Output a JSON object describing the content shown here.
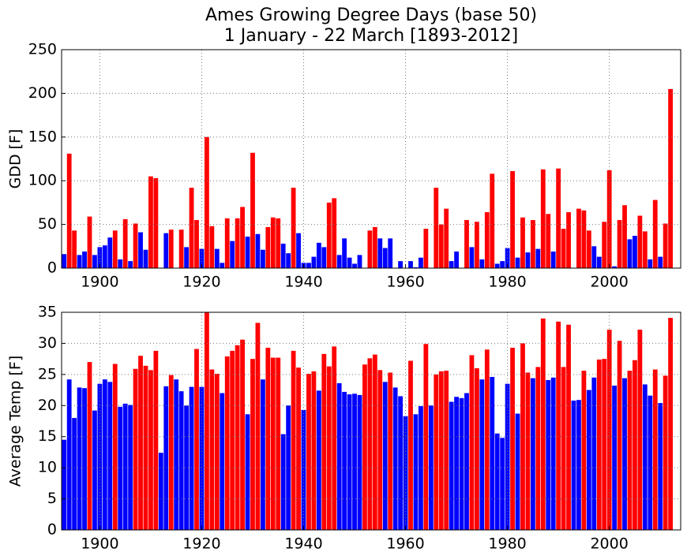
{
  "chart_data": [
    {
      "type": "bar",
      "title": "Ames Growing Degree Days (base 50)",
      "subtitle": "1 January - 22 March [1893-2012]",
      "y_label": "GDD [F]",
      "x": [
        1893,
        1894,
        1895,
        1896,
        1897,
        1898,
        1899,
        1900,
        1901,
        1902,
        1903,
        1904,
        1905,
        1906,
        1907,
        1908,
        1909,
        1910,
        1911,
        1912,
        1913,
        1914,
        1915,
        1916,
        1917,
        1918,
        1919,
        1920,
        1921,
        1922,
        1923,
        1924,
        1925,
        1926,
        1927,
        1928,
        1929,
        1930,
        1931,
        1932,
        1933,
        1934,
        1935,
        1936,
        1937,
        1938,
        1939,
        1940,
        1941,
        1942,
        1943,
        1944,
        1945,
        1946,
        1947,
        1948,
        1949,
        1950,
        1951,
        1952,
        1953,
        1954,
        1955,
        1956,
        1957,
        1958,
        1959,
        1960,
        1961,
        1962,
        1963,
        1964,
        1965,
        1966,
        1967,
        1968,
        1969,
        1970,
        1971,
        1972,
        1973,
        1974,
        1975,
        1976,
        1977,
        1978,
        1979,
        1980,
        1981,
        1982,
        1983,
        1984,
        1985,
        1986,
        1987,
        1988,
        1989,
        1990,
        1991,
        1992,
        1993,
        1994,
        1995,
        1996,
        1997,
        1998,
        1999,
        2000,
        2001,
        2002,
        2003,
        2004,
        2005,
        2006,
        2007,
        2008,
        2009,
        2010,
        2011,
        2012
      ],
      "values": [
        16,
        131,
        43,
        15,
        19,
        59,
        15,
        24,
        26,
        35,
        43,
        10,
        56,
        8,
        51,
        41,
        21,
        105,
        103,
        0,
        40,
        44,
        0,
        44,
        24,
        92,
        55,
        22,
        150,
        48,
        22,
        6,
        57,
        31,
        57,
        70,
        36,
        132,
        39,
        21,
        47,
        58,
        57,
        28,
        17,
        92,
        40,
        6,
        6,
        13,
        29,
        24,
        75,
        80,
        15,
        34,
        12,
        5,
        15,
        0,
        43,
        47,
        34,
        23,
        34,
        0,
        8,
        0,
        8,
        1,
        12,
        45,
        0,
        92,
        50,
        68,
        8,
        19,
        0,
        55,
        24,
        53,
        10,
        64,
        108,
        5,
        8,
        23,
        111,
        12,
        58,
        18,
        55,
        22,
        113,
        62,
        19,
        114,
        45,
        64,
        0,
        68,
        66,
        43,
        25,
        13,
        53,
        112,
        2,
        55,
        72,
        33,
        37,
        60,
        42,
        10,
        78,
        13,
        51,
        205
      ],
      "colors": [
        "blue",
        "red",
        "red",
        "blue",
        "blue",
        "red",
        "blue",
        "blue",
        "blue",
        "blue",
        "red",
        "blue",
        "red",
        "blue",
        "red",
        "blue",
        "blue",
        "red",
        "red",
        "blue",
        "blue",
        "red",
        "blue",
        "red",
        "blue",
        "red",
        "red",
        "blue",
        "red",
        "red",
        "blue",
        "blue",
        "red",
        "blue",
        "red",
        "red",
        "blue",
        "red",
        "blue",
        "blue",
        "red",
        "red",
        "red",
        "blue",
        "blue",
        "red",
        "blue",
        "blue",
        "blue",
        "blue",
        "blue",
        "blue",
        "red",
        "red",
        "blue",
        "blue",
        "blue",
        "blue",
        "blue",
        "blue",
        "red",
        "red",
        "blue",
        "blue",
        "blue",
        "blue",
        "blue",
        "blue",
        "blue",
        "blue",
        "blue",
        "red",
        "blue",
        "red",
        "red",
        "red",
        "blue",
        "blue",
        "blue",
        "red",
        "blue",
        "red",
        "blue",
        "red",
        "red",
        "blue",
        "blue",
        "blue",
        "red",
        "blue",
        "red",
        "blue",
        "red",
        "blue",
        "red",
        "red",
        "blue",
        "red",
        "red",
        "red",
        "blue",
        "red",
        "red",
        "red",
        "blue",
        "blue",
        "red",
        "red",
        "blue",
        "red",
        "red",
        "blue",
        "blue",
        "red",
        "red",
        "blue",
        "red",
        "blue",
        "red",
        "red"
      ],
      "xlim": [
        1892.5,
        2014
      ],
      "xticks": [
        1900,
        1920,
        1940,
        1960,
        1980,
        2000
      ],
      "ylim": [
        0,
        250
      ],
      "yticks": [
        0,
        50,
        100,
        150,
        200,
        250
      ],
      "grid": true
    },
    {
      "type": "bar",
      "y_label": "Average Temp [F]",
      "x": [
        1893,
        1894,
        1895,
        1896,
        1897,
        1898,
        1899,
        1900,
        1901,
        1902,
        1903,
        1904,
        1905,
        1906,
        1907,
        1908,
        1909,
        1910,
        1911,
        1912,
        1913,
        1914,
        1915,
        1916,
        1917,
        1918,
        1919,
        1920,
        1921,
        1922,
        1923,
        1924,
        1925,
        1926,
        1927,
        1928,
        1929,
        1930,
        1931,
        1932,
        1933,
        1934,
        1935,
        1936,
        1937,
        1938,
        1939,
        1940,
        1941,
        1942,
        1943,
        1944,
        1945,
        1946,
        1947,
        1948,
        1949,
        1950,
        1951,
        1952,
        1953,
        1954,
        1955,
        1956,
        1957,
        1958,
        1959,
        1960,
        1961,
        1962,
        1963,
        1964,
        1965,
        1966,
        1967,
        1968,
        1969,
        1970,
        1971,
        1972,
        1973,
        1974,
        1975,
        1976,
        1977,
        1978,
        1979,
        1980,
        1981,
        1982,
        1983,
        1984,
        1985,
        1986,
        1987,
        1988,
        1989,
        1990,
        1991,
        1992,
        1993,
        1994,
        1995,
        1996,
        1997,
        1998,
        1999,
        2000,
        2001,
        2002,
        2003,
        2004,
        2005,
        2006,
        2007,
        2008,
        2009,
        2010,
        2011,
        2012
      ],
      "values": [
        14.5,
        24.2,
        18,
        22.9,
        22.8,
        27,
        19.2,
        23.5,
        24.2,
        23.8,
        26.7,
        19.8,
        20.3,
        20.1,
        25.9,
        28,
        26.4,
        25.7,
        28.8,
        12.4,
        23.1,
        24.9,
        24.2,
        22.3,
        20,
        23,
        29.1,
        23,
        35,
        25.8,
        25.1,
        22,
        27.9,
        28.8,
        29.7,
        30.6,
        18.6,
        27.5,
        33.3,
        24.2,
        29.3,
        27.7,
        27.7,
        15.4,
        20,
        28.8,
        26.1,
        19.3,
        25.1,
        25.5,
        22.4,
        28.3,
        26.3,
        29.5,
        23.6,
        22.2,
        21.8,
        21.9,
        21.7,
        26.6,
        27.6,
        28.2,
        25.7,
        23.8,
        25.3,
        22.9,
        21.5,
        18.3,
        27.2,
        18.6,
        19.9,
        29.9,
        20,
        25,
        25.5,
        25.6,
        20.6,
        21.4,
        21.2,
        22,
        28.1,
        26,
        24.2,
        29,
        24.6,
        15.5,
        14.8,
        23.5,
        29.3,
        18.7,
        30,
        25.3,
        24.4,
        26.2,
        34,
        24.1,
        24.5,
        33.5,
        26.2,
        33,
        20.8,
        20.9,
        25.6,
        22.5,
        24.5,
        27.4,
        27.5,
        32.2,
        23.2,
        30.4,
        24.4,
        25.6,
        27.3,
        32.2,
        23.4,
        21.6,
        25.8,
        20.4,
        24.8,
        34.1
      ],
      "colors": [
        "blue",
        "blue",
        "blue",
        "blue",
        "blue",
        "red",
        "blue",
        "blue",
        "blue",
        "blue",
        "red",
        "blue",
        "blue",
        "blue",
        "red",
        "red",
        "red",
        "red",
        "red",
        "blue",
        "blue",
        "red",
        "blue",
        "blue",
        "blue",
        "blue",
        "red",
        "blue",
        "red",
        "red",
        "red",
        "blue",
        "red",
        "red",
        "red",
        "red",
        "blue",
        "red",
        "red",
        "blue",
        "red",
        "red",
        "red",
        "blue",
        "blue",
        "red",
        "red",
        "blue",
        "red",
        "red",
        "blue",
        "red",
        "red",
        "red",
        "blue",
        "blue",
        "blue",
        "blue",
        "blue",
        "red",
        "red",
        "red",
        "red",
        "blue",
        "red",
        "blue",
        "blue",
        "blue",
        "red",
        "blue",
        "blue",
        "red",
        "blue",
        "red",
        "red",
        "red",
        "blue",
        "blue",
        "blue",
        "blue",
        "red",
        "red",
        "blue",
        "red",
        "blue",
        "blue",
        "blue",
        "blue",
        "red",
        "blue",
        "red",
        "red",
        "blue",
        "red",
        "red",
        "blue",
        "blue",
        "red",
        "red",
        "red",
        "blue",
        "blue",
        "red",
        "blue",
        "blue",
        "red",
        "red",
        "red",
        "blue",
        "red",
        "blue",
        "red",
        "red",
        "red",
        "blue",
        "blue",
        "red",
        "blue",
        "red",
        "red"
      ],
      "xlim": [
        1892.5,
        2014
      ],
      "xticks": [
        1900,
        1920,
        1940,
        1960,
        1980,
        2000
      ],
      "ylim": [
        0,
        35
      ],
      "yticks": [
        0,
        5,
        10,
        15,
        20,
        25,
        30,
        35
      ],
      "grid": true
    }
  ]
}
